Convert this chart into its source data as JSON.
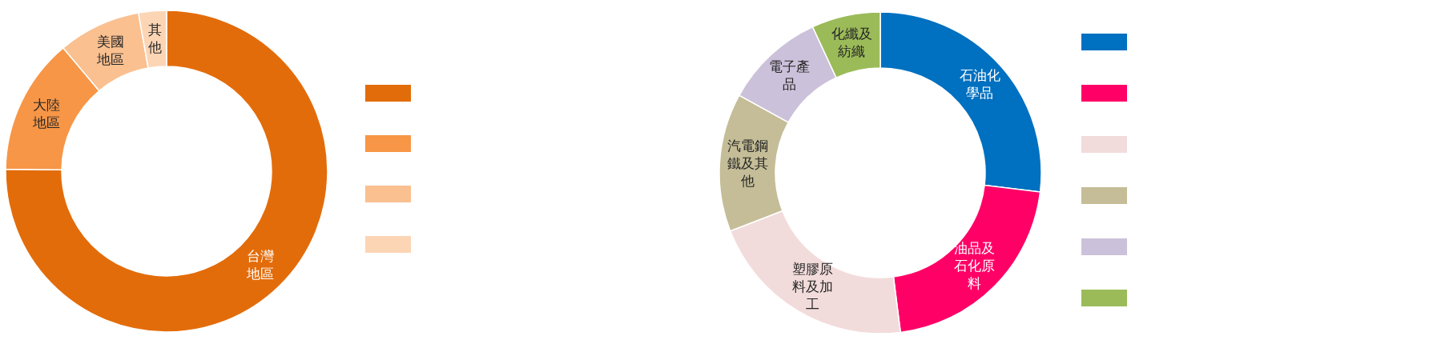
{
  "chart_data": [
    {
      "type": "donut",
      "categories": [
        "台灣地區",
        "大陸地區",
        "美國地區",
        "其他"
      ],
      "values": [
        75.2,
        13.7,
        8.3,
        2.8
      ],
      "colors": [
        "#e36c0a",
        "#f79646",
        "#fac090",
        "#fcd5b5"
      ]
    },
    {
      "type": "donut",
      "categories": [
        "石油化學品",
        "油品及石化原料",
        "塑膠原料及加工",
        "汽電鋼鐵及其他",
        "電子產品",
        "化纖及紡織"
      ],
      "values": [
        26.9,
        21.1,
        21.1,
        13.9,
        10.1,
        6.9
      ],
      "colors": [
        "#0070c0",
        "#ff0066",
        "#f2dcdb",
        "#c4bd97",
        "#ccc1da",
        "#9bbb59"
      ]
    }
  ]
}
